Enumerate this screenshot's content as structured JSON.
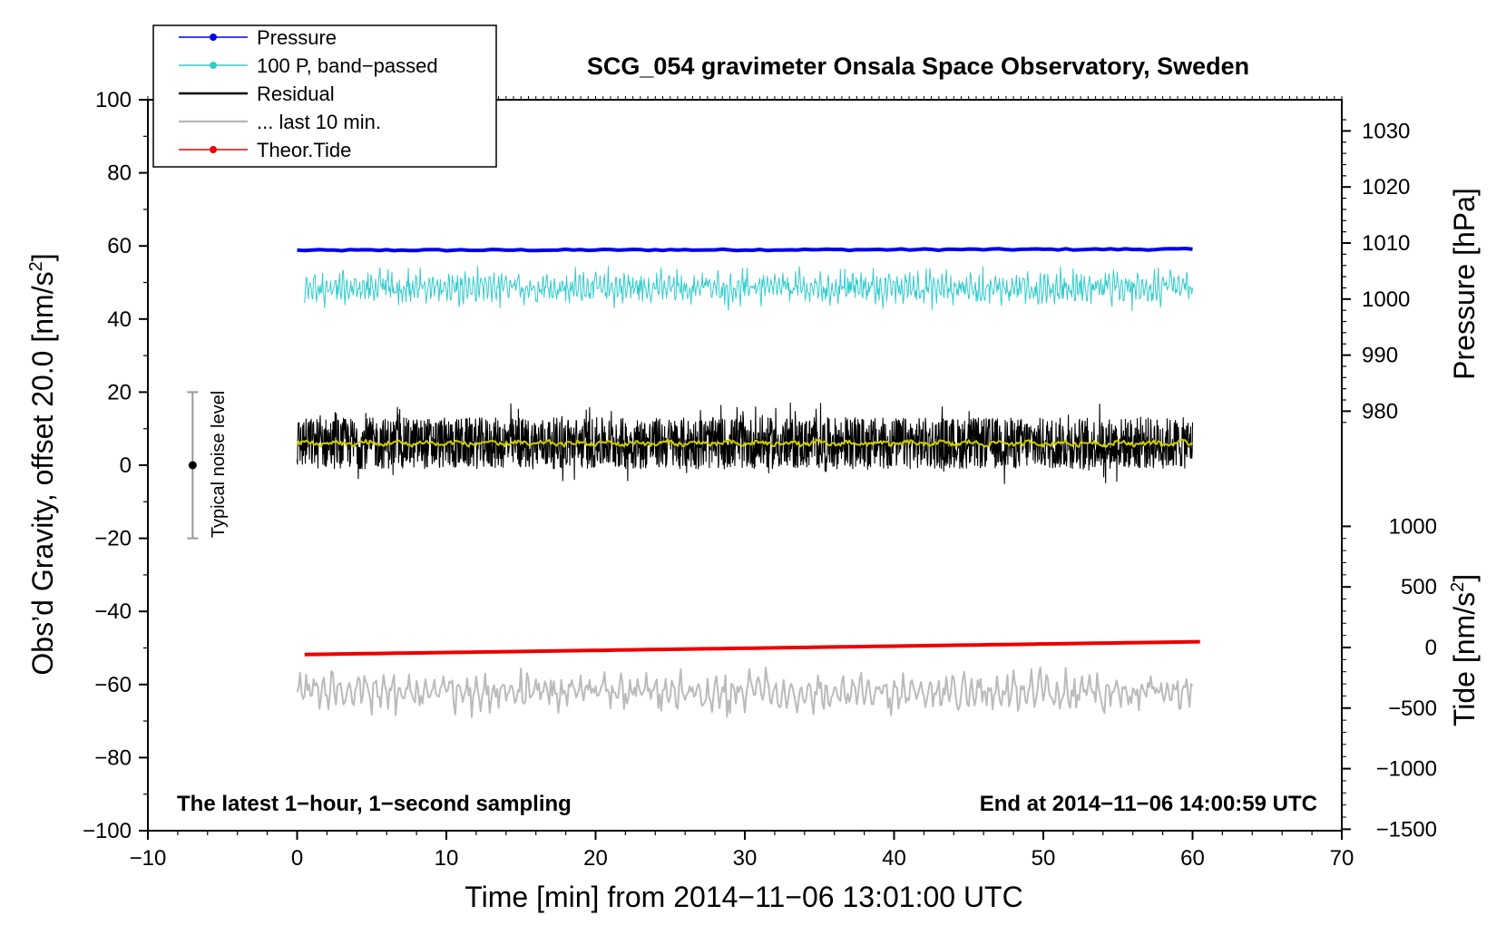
{
  "chart_data": {
    "type": "line",
    "title": "SCG_054 gravimeter Onsala Space Observatory, Sweden",
    "xlabel": "Time [min] from 2014−11−06 13:01:00 UTC",
    "ylabel_left": "Obs’d Gravity, offset 20.0 [nm/s",
    "ylabel_left_sup": "2",
    "ylabel_left_end": "]",
    "ylabel_right_pressure": "Pressure [hPa]",
    "ylabel_right_tide": "Tide [nm/s",
    "ylabel_right_tide_sup": "2",
    "ylabel_right_tide_end": "]",
    "xlim": [
      -10,
      70
    ],
    "ylim_left": [
      -100,
      100
    ],
    "pressure_ticks": [
      980,
      990,
      1000,
      1010,
      1020,
      1030
    ],
    "tide_ticks": [
      -1500,
      -1000,
      -500,
      0,
      500,
      1000
    ],
    "x_ticks": [
      -10,
      0,
      10,
      20,
      30,
      40,
      50,
      60,
      70
    ],
    "x_tick_labels": [
      "−10",
      "0",
      "10",
      "20",
      "30",
      "40",
      "50",
      "60",
      "70"
    ],
    "y_ticks": [
      -100,
      -80,
      -60,
      -40,
      -20,
      0,
      20,
      40,
      60,
      80,
      100
    ],
    "y_tick_labels": [
      "−100",
      "−80",
      "−60",
      "−40",
      "−20",
      "0",
      "20",
      "40",
      "60",
      "80",
      "100"
    ],
    "tide_tick_labels": [
      "−1500",
      "−1000",
      "−500",
      "0",
      "500",
      "1000"
    ],
    "annotation_left": "The latest 1−hour, 1−second sampling",
    "annotation_right": "End at 2014−11−06 14:00:59 UTC",
    "noise_label": "Typical noise level",
    "noise_bar": {
      "x": -7,
      "center": 0,
      "low": -20,
      "high": 20
    },
    "legend": [
      {
        "label": "Pressure",
        "color": "#0000ee",
        "marker": true
      },
      {
        "label": "100 P, band−passed",
        "color": "#33cccc",
        "marker": true
      },
      {
        "label": "Residual",
        "color": "#000000",
        "marker": false
      },
      {
        "label": "... last 10 min.",
        "color": "#bbbbbb",
        "marker": false
      },
      {
        "label": "Theor.Tide",
        "color": "#ee0000",
        "marker": true
      }
    ],
    "series": [
      {
        "name": "Pressure",
        "color": "#0000ee",
        "x_range": [
          0,
          60
        ],
        "approx_value": 58.8,
        "noise": 0.4
      },
      {
        "name": "100 P, band-passed",
        "color": "#33cccc",
        "x_range": [
          0.5,
          60
        ],
        "approx_value": 48.5,
        "noise": 7
      },
      {
        "name": "Residual",
        "color": "#000000",
        "x_range": [
          0,
          60
        ],
        "approx_value": 6,
        "noise": 14
      },
      {
        "name": "Residual smoothed",
        "color": "#cccc00",
        "x_range": [
          0,
          60
        ],
        "approx_value": 6,
        "noise": 1.2
      },
      {
        "name": "... last 10 min.",
        "color": "#bbbbbb",
        "x_range": [
          0,
          60
        ],
        "approx_value": -62,
        "noise": 13
      },
      {
        "name": "Theor.Tide",
        "color": "#ee0000",
        "x_range": [
          0.5,
          60.5
        ],
        "start_value": -51.8,
        "end_value": -48.3
      }
    ]
  }
}
